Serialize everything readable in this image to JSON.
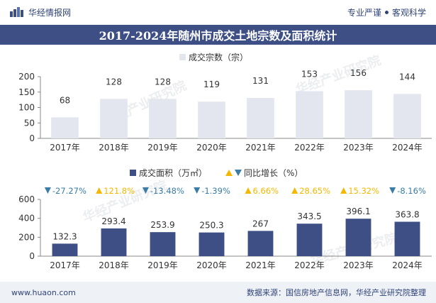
{
  "header": {
    "brand": "华经情报网",
    "slogan_left": "专业严谨",
    "slogan_right": "客观科学"
  },
  "title": "2017-2024年随州市成交土地宗数及面积统计",
  "footer": {
    "site": "www.huaon.com",
    "source": "数据来源：国信房地产信息网，华经产业研究院整理"
  },
  "watermark": "华经产业研究院",
  "chart_data": [
    {
      "type": "bar",
      "legend": "成交宗数（宗）",
      "categories": [
        "2017年",
        "2018年",
        "2019年",
        "2020年",
        "2021年",
        "2022年",
        "2023年",
        "2024年"
      ],
      "values": [
        68,
        128,
        128,
        119,
        131,
        153,
        156,
        144
      ],
      "yticks": [
        0,
        50,
        100,
        150,
        200
      ],
      "ylim": [
        0,
        200
      ],
      "color": "#e3e6ef"
    },
    {
      "type": "bar",
      "legend": "成交面积（万㎡）",
      "legend_yoy": "同比增长（%）",
      "categories": [
        "2017年",
        "2018年",
        "2019年",
        "2020年",
        "2021年",
        "2022年",
        "2023年",
        "2024年"
      ],
      "values": [
        132.3,
        293.4,
        253.9,
        250.3,
        267,
        343.5,
        396.1,
        363.8
      ],
      "yoy": [
        "-27.27%",
        "121.8%",
        "-13.48%",
        "-1.39%",
        "6.66%",
        "28.65%",
        "15.32%",
        "-8.16%"
      ],
      "yoy_direction": [
        "down",
        "up",
        "down",
        "down",
        "up",
        "up",
        "up",
        "down"
      ],
      "yticks": [
        0,
        200,
        400,
        600
      ],
      "ylim": [
        0,
        600
      ],
      "color": "#3e4f86",
      "up_color": "#f5b800",
      "down_color": "#3a7ca5"
    }
  ]
}
